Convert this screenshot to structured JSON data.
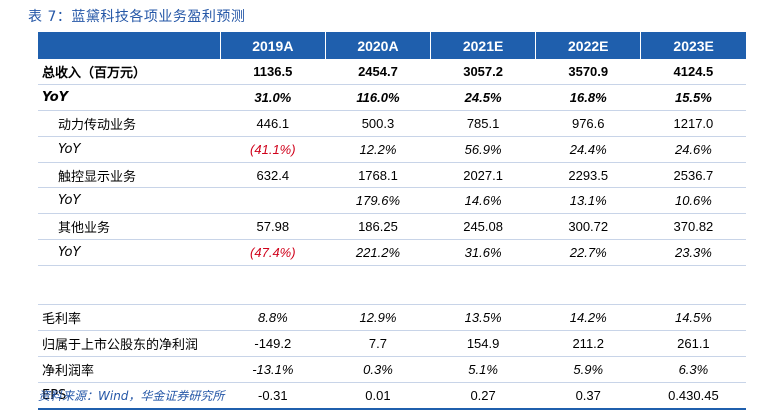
{
  "caption": "表 7：蓝黛科技各项业务盈利预测",
  "source": "资料来源：Wind，华金证券研究所",
  "columns": [
    "",
    "2019A",
    "2020A",
    "2021E",
    "2022E",
    "2023E"
  ],
  "rows": [
    {
      "label": "总收入（百万元）",
      "values": [
        "1136.5",
        "2454.7",
        "3057.2",
        "3570.9",
        "4124.5"
      ]
    },
    {
      "label": "YoY",
      "values": [
        "31.0%",
        "116.0%",
        "24.5%",
        "16.8%",
        "15.5%"
      ]
    },
    {
      "label": "动力传动业务",
      "values": [
        "446.1",
        "500.3",
        "785.1",
        "976.6",
        "1217.0"
      ]
    },
    {
      "label": "YoY",
      "values": [
        "(41.1%)",
        "12.2%",
        "56.9%",
        "24.4%",
        "24.6%"
      ]
    },
    {
      "label": "触控显示业务",
      "values": [
        "632.4",
        "1768.1",
        "2027.1",
        "2293.5",
        "2536.7"
      ]
    },
    {
      "label": "YoY",
      "values": [
        "",
        "179.6%",
        "14.6%",
        "13.1%",
        "10.6%"
      ]
    },
    {
      "label": "其他业务",
      "values": [
        "57.98",
        "186.25",
        "245.08",
        "300.72",
        "370.82"
      ]
    },
    {
      "label": "YoY",
      "values": [
        "(47.4%)",
        "221.2%",
        "31.6%",
        "22.7%",
        "23.3%"
      ]
    },
    {
      "label": "",
      "values": [
        "",
        "",
        "",
        "",
        ""
      ]
    },
    {
      "label": "毛利率",
      "values": [
        "8.8%",
        "12.9%",
        "13.5%",
        "14.2%",
        "14.5%"
      ]
    },
    {
      "label": "归属于上市公股东的净利润",
      "values": [
        "-149.2",
        "7.7",
        "154.9",
        "211.2",
        "261.1"
      ]
    },
    {
      "label": "净利润率",
      "values": [
        "-13.1%",
        "0.3%",
        "5.1%",
        "5.9%",
        "6.3%"
      ]
    },
    {
      "label": "EPS",
      "values": [
        "-0.31",
        "0.01",
        "0.27",
        "0.37",
        "0.430.45"
      ]
    }
  ],
  "colors": {
    "header_bg": "#1f5fad",
    "accent_text": "#2557a7",
    "negative": "#d0021b"
  }
}
